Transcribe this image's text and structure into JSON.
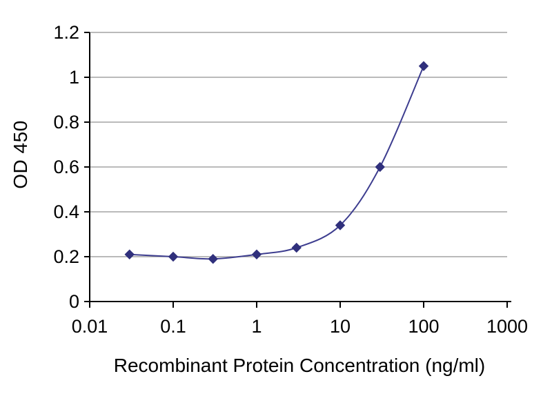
{
  "chart_data": {
    "type": "line",
    "title": "",
    "xlabel": "Recombinant Protein Concentration (ng/ml)",
    "ylabel": "OD 450",
    "x_scale": "log",
    "xlim": [
      0.01,
      1000
    ],
    "ylim": [
      0,
      1.2
    ],
    "xticks": [
      0.01,
      0.1,
      1,
      10,
      100,
      1000
    ],
    "xtick_labels": [
      "0.01",
      "0.1",
      "1",
      "10",
      "100",
      "1000"
    ],
    "yticks": [
      0,
      0.2,
      0.4,
      0.6,
      0.8,
      1,
      1.2
    ],
    "ytick_labels": [
      "0",
      "0.2",
      "0.4",
      "0.6",
      "0.8",
      "1",
      "1.2"
    ],
    "grid": "horizontal",
    "legend": "none",
    "series": [
      {
        "name": "OD 450",
        "marker": "diamond",
        "line_style": "smooth",
        "x": [
          0.03,
          0.1,
          0.3,
          1,
          3,
          10,
          30,
          100
        ],
        "y": [
          0.21,
          0.2,
          0.19,
          0.21,
          0.24,
          0.34,
          0.6,
          1.05
        ]
      }
    ],
    "colors": {
      "line": "#3d3d8f",
      "marker": "#30307c",
      "grid": "#909090",
      "axis": "#000000",
      "background": "#ffffff"
    }
  }
}
